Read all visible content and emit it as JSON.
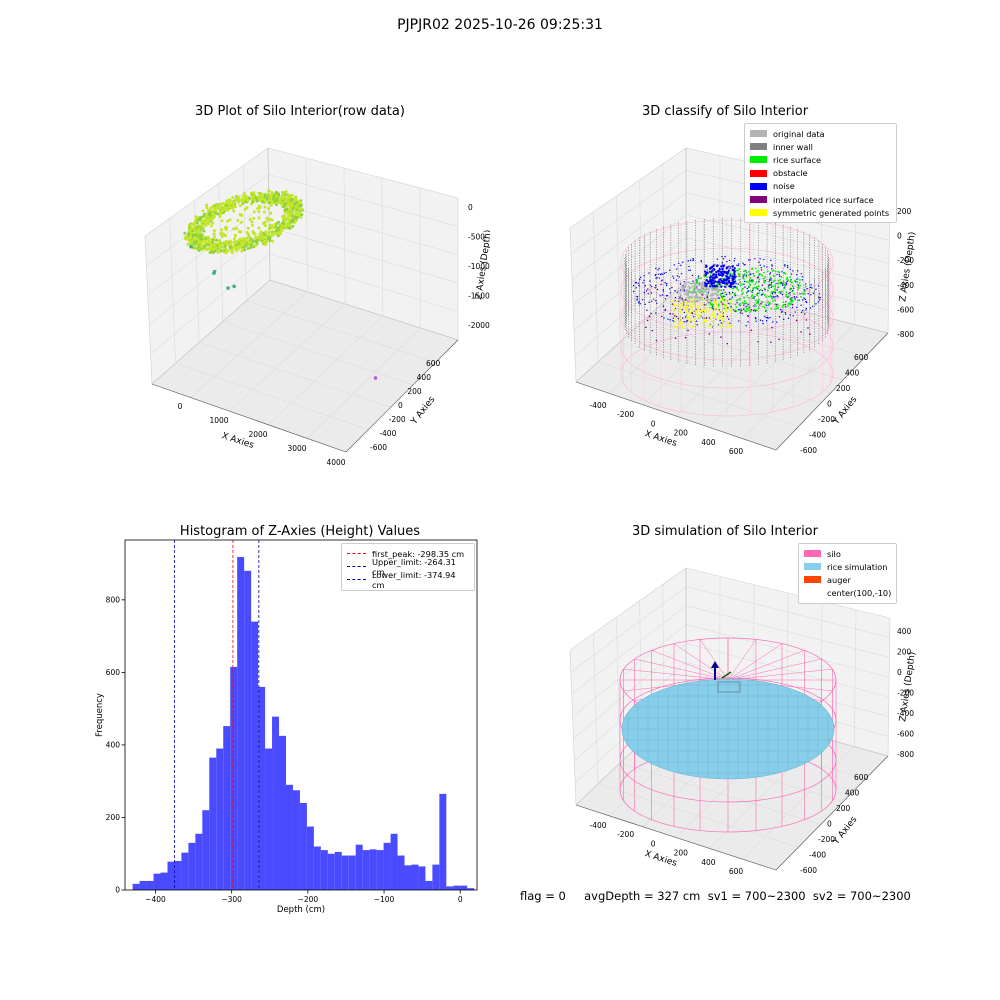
{
  "suptitle": "PJPJR02 2025-10-26 09:25:31",
  "footer": "flag = 0     avgDepth = 327 cm  sv1 = 700~2300  sv2 = 700~2300",
  "chart_data": [
    {
      "type": "scatter",
      "title": "3D Plot of Silo Interior(row data)",
      "xlabel": "X Axies",
      "ylabel": "Y Axies",
      "zlabel": "Z Axies (Depth)",
      "x_ticks": [
        "0",
        "1000",
        "2000",
        "3000",
        "4000"
      ],
      "y_ticks": [
        "600",
        "400",
        "200",
        "0",
        "-200",
        "-400",
        "-600"
      ],
      "z_ticks": [
        "0",
        "-500",
        "-1000",
        "-1500",
        "-2000"
      ],
      "outlier_points": [
        {
          "x": 380,
          "y": 150,
          "z": -1100
        },
        {
          "x": 820,
          "y": 60,
          "z": -1500
        },
        {
          "x": 790,
          "y": 40,
          "z": -1560
        },
        {
          "x": 1150,
          "y": -60,
          "z": -1630
        },
        {
          "x": 980,
          "y": -100,
          "z": -1800
        },
        {
          "x": 3900,
          "y": -500,
          "z": -2050
        }
      ],
      "colors": {
        "cloud": "#c4e62a",
        "cloud_dark": "#8fd13a",
        "outlier": "#3db07a",
        "far": "#b15fc2"
      }
    },
    {
      "type": "scatter",
      "title": "3D classify of Silo Interior",
      "xlabel": "X Axies",
      "ylabel": "Y Axies",
      "zlabel": "Z Axies (Depth)",
      "x_ticks": [
        "-400",
        "-200",
        "0",
        "200",
        "400",
        "600"
      ],
      "y_ticks": [
        "600",
        "400",
        "200",
        "0",
        "-200",
        "-400",
        "-600"
      ],
      "z_ticks": [
        "200",
        "0",
        "-200",
        "-400",
        "-600",
        "-800"
      ],
      "legend": [
        {
          "label": "original data",
          "color": "#b3b3b3"
        },
        {
          "label": "inner wall",
          "color": "#808080"
        },
        {
          "label": "rice surface",
          "color": "#00ee00"
        },
        {
          "label": "obstacle",
          "color": "#ff0000"
        },
        {
          "label": "noise",
          "color": "#0000ee"
        },
        {
          "label": "interpolated rice surface",
          "color": "#800080"
        },
        {
          "label": "symmetric generated points",
          "color": "#ffff00"
        }
      ]
    },
    {
      "type": "bar",
      "title": "Histogram of Z-Axies (Height) Values",
      "xlabel": "Depth (cm)",
      "ylabel": "Frequency",
      "xlim": [
        -440,
        22
      ],
      "ylim": [
        0,
        965
      ],
      "x_ticks": [
        -400,
        -300,
        -200,
        -100,
        0
      ],
      "y_ticks": [
        0,
        200,
        400,
        600,
        800
      ],
      "bin_width": 9.15,
      "bin_start": -430,
      "values": [
        17,
        25,
        25,
        45,
        48,
        78,
        80,
        103,
        130,
        155,
        220,
        365,
        390,
        452,
        615,
        918,
        880,
        740,
        560,
        390,
        478,
        425,
        290,
        275,
        240,
        175,
        120,
        110,
        100,
        105,
        95,
        95,
        125,
        110,
        112,
        110,
        130,
        155,
        95,
        68,
        70,
        65,
        25,
        70,
        265,
        10,
        12,
        12,
        5
      ],
      "bar_color": "#4a4aff",
      "lines": [
        {
          "label": "first_peak: -298.35 cm",
          "x": -298.35,
          "color": "#ff0000"
        },
        {
          "label": "Upper_limit: -264.31 cm",
          "x": -264.31,
          "color": "#0000aa"
        },
        {
          "label": "Lower_limit: -374.94 cm",
          "x": -374.94,
          "color": "#0000aa"
        }
      ]
    },
    {
      "type": "scatter",
      "title": "3D simulation of Silo Interior",
      "xlabel": "X Axies",
      "ylabel": "Y Axies",
      "zlabel": "Z Axies (Depth)",
      "x_ticks": [
        "-400",
        "-200",
        "0",
        "200",
        "400",
        "600"
      ],
      "y_ticks": [
        "600",
        "400",
        "200",
        "0",
        "-200",
        "-400",
        "-600"
      ],
      "z_ticks": [
        "400",
        "200",
        "0",
        "-200",
        "-400",
        "-600",
        "-800"
      ],
      "legend": [
        {
          "label": "silo",
          "color": "#ff69b4"
        },
        {
          "label": "rice simulation",
          "color": "#87ceeb"
        },
        {
          "label": "auger",
          "color": "#ff4500"
        },
        {
          "label": "center(100,-10)",
          "color": ""
        }
      ]
    }
  ]
}
